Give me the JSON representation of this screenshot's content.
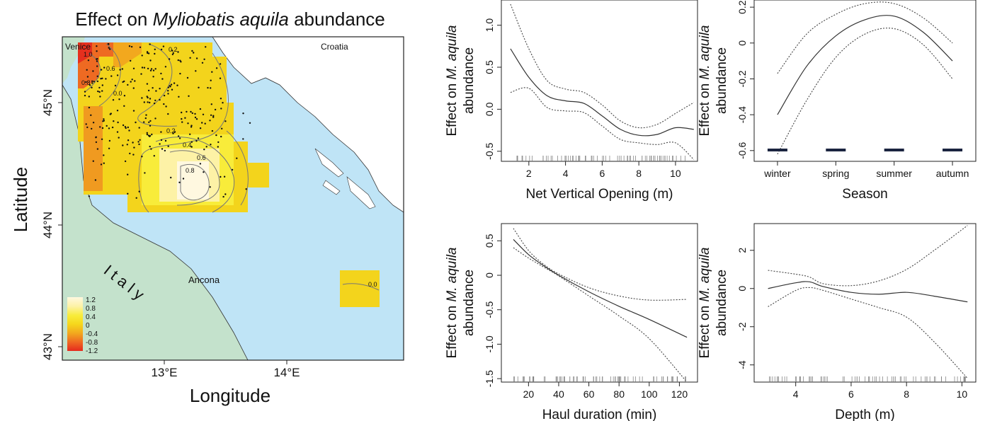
{
  "map": {
    "title_prefix": "Effect on ",
    "title_species": "Myliobatis aquila",
    "title_suffix": " abundance",
    "xlabel": "Longitude",
    "ylabel": "Latitude",
    "x_ticks": [
      "13°E",
      "14°E"
    ],
    "y_ticks": [
      "45°N",
      "44°N",
      "43°N"
    ],
    "places": {
      "venice": "Venice",
      "croatia": "Croatia",
      "ancona": "Ancona",
      "italy": "I t a l y"
    },
    "contours": [
      "1.0",
      "0.6",
      "0.2",
      "0.8",
      "0.0",
      "0.2",
      "0.4",
      "0.6",
      "0.8",
      "0.0"
    ],
    "legend": {
      "values": [
        "1.2",
        "0.8",
        "0.4",
        "0",
        "-0.4",
        "-0.8",
        "-1.2"
      ],
      "colors": [
        "#fff8e0",
        "#fdf2a6",
        "#f8ec3a",
        "#f6d81c",
        "#f2a81e",
        "#ef6b22",
        "#e52a1e"
      ]
    }
  },
  "chart_data": [
    {
      "type": "line",
      "title": "",
      "xlabel": "Net Vertical Opening (m)",
      "ylabel_prefix": "Effect on ",
      "ylabel_species": "M. aquila",
      "ylabel_2": "abundance",
      "xlim": [
        0.5,
        11.2
      ],
      "ylim": [
        -0.62,
        1.3
      ],
      "x_ticks": [
        "2",
        "4",
        "6",
        "8",
        "10"
      ],
      "y_ticks": [
        "1.0",
        "0.5",
        "0.0",
        "-0.5"
      ],
      "x": [
        1,
        2,
        3,
        4,
        5,
        6,
        7,
        8,
        9,
        10,
        11
      ],
      "fit": [
        0.72,
        0.38,
        0.16,
        0.1,
        0.07,
        -0.08,
        -0.24,
        -0.31,
        -0.3,
        -0.22,
        -0.24
      ],
      "upper": [
        1.25,
        0.72,
        0.34,
        0.24,
        0.2,
        0.05,
        -0.14,
        -0.22,
        -0.18,
        -0.05,
        0.08
      ],
      "lower": [
        0.2,
        0.25,
        0.02,
        -0.02,
        -0.04,
        -0.2,
        -0.36,
        -0.4,
        -0.42,
        -0.4,
        -0.6
      ]
    },
    {
      "type": "line",
      "title": "",
      "xlabel": "Season",
      "ylabel_prefix": "Effect on ",
      "ylabel_species": "M. aquila",
      "ylabel_2": "abundance",
      "categories": [
        "winter",
        "spring",
        "summer",
        "autumn"
      ],
      "ylim": [
        -0.66,
        0.24
      ],
      "y_ticks": [
        "0.2",
        "0",
        "-0.2",
        "-0.4",
        "-0.6"
      ],
      "x": [
        1,
        1.5,
        2,
        2.5,
        3,
        3.5,
        4
      ],
      "fit": [
        -0.4,
        -0.13,
        0.04,
        0.13,
        0.15,
        0.06,
        -0.1
      ],
      "upper": [
        -0.17,
        0.05,
        0.16,
        0.22,
        0.22,
        0.14,
        0.0
      ],
      "lower": [
        -0.62,
        -0.32,
        -0.08,
        0.05,
        0.08,
        -0.01,
        -0.2
      ]
    },
    {
      "type": "line",
      "title": "",
      "xlabel": "Haul duration (min)",
      "ylabel_prefix": "Effect on ",
      "ylabel_species": "M. aquila",
      "ylabel_2": "abundance",
      "xlim": [
        2,
        132
      ],
      "ylim": [
        -1.55,
        0.75
      ],
      "x_ticks": [
        "20",
        "40",
        "60",
        "80",
        "100",
        "120"
      ],
      "y_ticks": [
        "0.5",
        "0",
        "-0.5",
        "-1.0",
        "-1.5"
      ],
      "x": [
        10,
        20,
        30,
        40,
        60,
        80,
        100,
        125
      ],
      "fit": [
        0.52,
        0.3,
        0.14,
        0.0,
        -0.24,
        -0.45,
        -0.64,
        -0.9
      ],
      "upper": [
        0.68,
        0.36,
        0.16,
        0.02,
        -0.18,
        -0.3,
        -0.36,
        -0.35
      ],
      "lower": [
        0.4,
        0.25,
        0.12,
        -0.01,
        -0.3,
        -0.59,
        -0.92,
        -1.55
      ]
    },
    {
      "type": "line",
      "title": "",
      "xlabel": "Depth (m)",
      "ylabel_prefix": "Effect on ",
      "ylabel_species": "M. aquila",
      "ylabel_2": "abundance",
      "xlim": [
        2.5,
        10.5
      ],
      "ylim": [
        -4.9,
        3.4
      ],
      "x_ticks": [
        "4",
        "6",
        "8",
        "10"
      ],
      "y_ticks": [
        "2",
        "0",
        "-2",
        "-4"
      ],
      "x": [
        3,
        4,
        4.5,
        5,
        6,
        7,
        8,
        9,
        10.2
      ],
      "fit": [
        0.0,
        0.3,
        0.35,
        0.1,
        -0.2,
        -0.3,
        -0.2,
        -0.4,
        -0.7
      ],
      "upper": [
        0.95,
        0.75,
        0.6,
        0.25,
        0.15,
        0.4,
        1.0,
        2.0,
        3.3
      ],
      "lower": [
        -0.95,
        -0.1,
        0.05,
        -0.1,
        -0.55,
        -1.0,
        -1.5,
        -2.8,
        -4.7
      ]
    }
  ]
}
